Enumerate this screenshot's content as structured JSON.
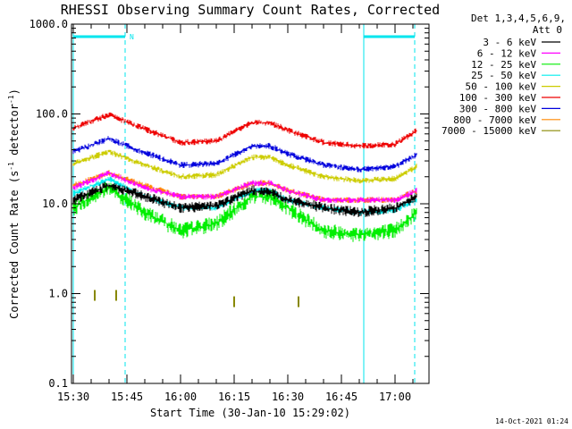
{
  "chart_data": {
    "type": "line",
    "title": "RHESSI Observing Summary Count Rates, Corrected",
    "xlabel": "Start Time (30-Jan-10 15:29:02)",
    "ylabel_main": "Corrected Count Rate (s",
    "ylabel_sup1": "-1",
    "ylabel_mid": " detector",
    "ylabel_sup2": "-1",
    "ylabel_end": ")",
    "yscale": "log",
    "ylim": [
      0.1,
      1000
    ],
    "yticks": [
      {
        "value": 0.1,
        "label": "0.1"
      },
      {
        "value": 1,
        "label": "1.0"
      },
      {
        "value": 10,
        "label": "10.0"
      },
      {
        "value": 100,
        "label": "100.0"
      },
      {
        "value": 1000,
        "label": "1000.0"
      }
    ],
    "xlim_minutes": [
      -0.5,
      99.5
    ],
    "xticks": [
      {
        "minute": 0,
        "label": "15:30"
      },
      {
        "minute": 15,
        "label": "15:45"
      },
      {
        "minute": 30,
        "label": "16:00"
      },
      {
        "minute": 45,
        "label": "16:15"
      },
      {
        "minute": 60,
        "label": "16:30"
      },
      {
        "minute": 75,
        "label": "16:45"
      },
      {
        "minute": 90,
        "label": "17:00"
      }
    ],
    "legend_header": [
      "Det 1,3,4,5,6,9,",
      "Att 0"
    ],
    "legend_position": "right",
    "series": [
      {
        "name": "3 - 6 keV",
        "color": "#000000",
        "x": [
          0,
          10,
          20,
          30,
          40,
          50,
          55,
          60,
          70,
          80,
          90,
          96
        ],
        "y": [
          11,
          16,
          12,
          9,
          9.5,
          14,
          13.5,
          11,
          9,
          8,
          9,
          12
        ]
      },
      {
        "name": "6 - 12 keV",
        "color": "#ff00ff",
        "x": [
          0,
          10,
          20,
          30,
          40,
          50,
          55,
          60,
          70,
          80,
          90,
          96
        ],
        "y": [
          15,
          22,
          15,
          12,
          12,
          17,
          17,
          14,
          11,
          11,
          11,
          14
        ]
      },
      {
        "name": "12 - 25 keV",
        "color": "#00ee00",
        "x": [
          0,
          10,
          20,
          30,
          40,
          50,
          55,
          60,
          70,
          80,
          90,
          96
        ],
        "y": [
          9,
          15,
          8,
          5,
          6,
          12,
          12,
          9,
          5,
          4.5,
          5,
          8
        ]
      },
      {
        "name": "25 - 50 keV",
        "color": "#00eeee",
        "x": [
          0,
          10,
          20,
          30,
          40,
          50,
          55,
          60,
          70,
          80,
          90,
          96
        ],
        "y": [
          13,
          19,
          12,
          9,
          9,
          14,
          14,
          11,
          9,
          8,
          8.5,
          11
        ]
      },
      {
        "name": "50 - 100 keV",
        "color": "#cccc00",
        "x": [
          0,
          10,
          20,
          30,
          40,
          50,
          55,
          60,
          70,
          80,
          90,
          96
        ],
        "y": [
          28,
          38,
          27,
          20,
          21,
          33,
          33,
          27,
          20,
          18,
          19,
          26
        ]
      },
      {
        "name": "100 - 300 keV",
        "color": "#ee0000",
        "x": [
          0,
          10,
          20,
          30,
          40,
          50,
          55,
          60,
          70,
          80,
          90,
          96
        ],
        "y": [
          70,
          98,
          68,
          48,
          50,
          80,
          80,
          66,
          48,
          44,
          46,
          65
        ]
      },
      {
        "name": "300 - 800 keV",
        "color": "#0000dd",
        "x": [
          0,
          10,
          20,
          30,
          40,
          50,
          55,
          60,
          70,
          80,
          90,
          96
        ],
        "y": [
          38,
          53,
          37,
          27,
          28,
          44,
          44,
          36,
          27,
          24,
          26,
          35
        ]
      },
      {
        "name": "800 - 7000 keV",
        "color": "#ff8800",
        "x": [
          0,
          10,
          20,
          30,
          40,
          50,
          55,
          60,
          70,
          80,
          90,
          96
        ],
        "y": [
          16,
          22,
          16,
          12,
          12,
          17,
          17,
          14,
          11,
          11,
          11,
          14
        ]
      },
      {
        "name": "7000 - 15000 keV",
        "color": "#888800",
        "x": [
          6,
          12,
          45,
          63
        ],
        "y": [
          1.0,
          1.0,
          0.85,
          0.85
        ]
      }
    ],
    "annotations": {
      "bar_label": "N",
      "timestamp": "14-Oct-2021 01:24"
    }
  }
}
